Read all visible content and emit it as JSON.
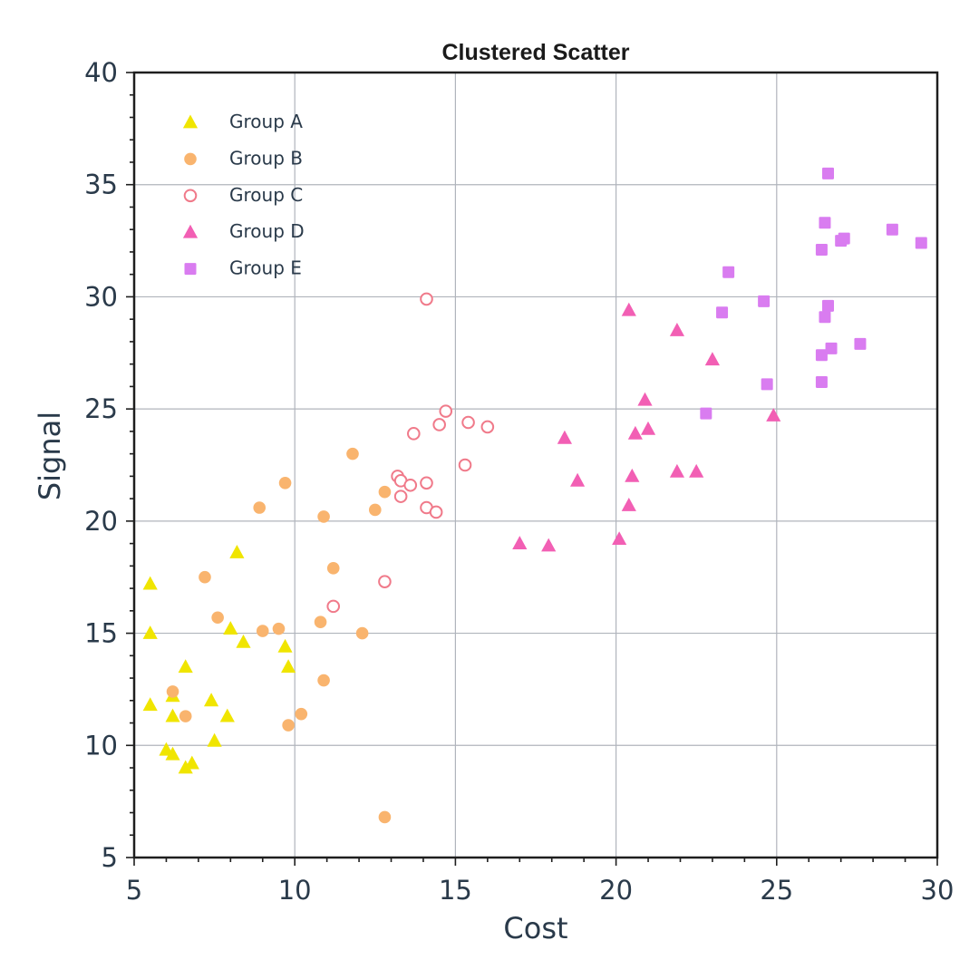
{
  "chart_data": {
    "type": "scatter",
    "title": "Clustered Scatter",
    "xlabel": "Cost",
    "ylabel": "Signal",
    "xlim": [
      5,
      30
    ],
    "ylim": [
      5,
      40
    ],
    "xticks": [
      5,
      10,
      15,
      20,
      25,
      30
    ],
    "yticks": [
      5,
      10,
      15,
      20,
      25,
      30,
      35,
      40
    ],
    "grid": true,
    "legend_position": "top-left",
    "series": [
      {
        "name": "Group A",
        "marker": "triangle",
        "filled": true,
        "color": "#f0e500",
        "points": [
          [
            5.5,
            17.2
          ],
          [
            5.5,
            15.0
          ],
          [
            5.5,
            11.8
          ],
          [
            6.0,
            9.8
          ],
          [
            6.2,
            9.6
          ],
          [
            6.2,
            12.2
          ],
          [
            6.2,
            11.3
          ],
          [
            6.6,
            13.5
          ],
          [
            6.6,
            9.0
          ],
          [
            6.8,
            9.2
          ],
          [
            7.4,
            12.0
          ],
          [
            7.5,
            10.2
          ],
          [
            7.9,
            11.3
          ],
          [
            8.0,
            15.2
          ],
          [
            8.2,
            18.6
          ],
          [
            8.4,
            14.6
          ],
          [
            9.7,
            14.4
          ],
          [
            9.8,
            13.5
          ]
        ]
      },
      {
        "name": "Group B",
        "marker": "circle",
        "filled": true,
        "color": "#f9b46e",
        "points": [
          [
            6.2,
            12.4
          ],
          [
            6.6,
            11.3
          ],
          [
            7.2,
            17.5
          ],
          [
            7.6,
            15.7
          ],
          [
            8.9,
            20.6
          ],
          [
            9.0,
            15.1
          ],
          [
            9.5,
            15.2
          ],
          [
            9.7,
            21.7
          ],
          [
            9.8,
            10.9
          ],
          [
            10.2,
            11.4
          ],
          [
            10.8,
            15.5
          ],
          [
            10.9,
            20.2
          ],
          [
            10.9,
            12.9
          ],
          [
            11.2,
            17.9
          ],
          [
            11.8,
            23.0
          ],
          [
            12.1,
            15.0
          ],
          [
            12.5,
            20.5
          ],
          [
            12.8,
            21.3
          ],
          [
            12.8,
            6.8
          ]
        ]
      },
      {
        "name": "Group C",
        "marker": "circle",
        "filled": false,
        "color": "#f07a8a",
        "points": [
          [
            11.2,
            16.2
          ],
          [
            12.8,
            17.3
          ],
          [
            13.2,
            22.0
          ],
          [
            13.3,
            21.8
          ],
          [
            13.3,
            21.1
          ],
          [
            13.6,
            21.6
          ],
          [
            13.7,
            23.9
          ],
          [
            14.1,
            21.7
          ],
          [
            14.1,
            20.6
          ],
          [
            14.1,
            29.9
          ],
          [
            14.4,
            20.4
          ],
          [
            14.5,
            24.3
          ],
          [
            14.7,
            24.9
          ],
          [
            15.3,
            22.5
          ],
          [
            15.4,
            24.4
          ],
          [
            16.0,
            24.2
          ]
        ]
      },
      {
        "name": "Group D",
        "marker": "triangle",
        "filled": true,
        "color": "#f25fb4",
        "points": [
          [
            17.0,
            19.0
          ],
          [
            17.9,
            18.9
          ],
          [
            18.4,
            23.7
          ],
          [
            18.8,
            21.8
          ],
          [
            20.1,
            19.2
          ],
          [
            20.4,
            29.4
          ],
          [
            20.4,
            20.7
          ],
          [
            20.5,
            22.0
          ],
          [
            20.6,
            23.9
          ],
          [
            20.9,
            25.4
          ],
          [
            21.0,
            24.1
          ],
          [
            21.9,
            28.5
          ],
          [
            21.9,
            22.2
          ],
          [
            22.5,
            22.2
          ],
          [
            23.0,
            27.2
          ],
          [
            24.9,
            24.7
          ]
        ]
      },
      {
        "name": "Group E",
        "marker": "square",
        "filled": true,
        "color": "#d97cf0",
        "points": [
          [
            22.8,
            24.8
          ],
          [
            23.3,
            29.3
          ],
          [
            23.5,
            31.1
          ],
          [
            24.6,
            29.8
          ],
          [
            24.7,
            26.1
          ],
          [
            26.4,
            32.1
          ],
          [
            26.4,
            27.4
          ],
          [
            26.4,
            26.2
          ],
          [
            26.5,
            33.3
          ],
          [
            26.5,
            29.1
          ],
          [
            26.6,
            35.5
          ],
          [
            26.6,
            29.6
          ],
          [
            26.7,
            27.7
          ],
          [
            27.0,
            32.5
          ],
          [
            27.1,
            32.6
          ],
          [
            27.6,
            27.9
          ],
          [
            28.6,
            33.0
          ],
          [
            29.5,
            32.4
          ]
        ]
      }
    ]
  }
}
